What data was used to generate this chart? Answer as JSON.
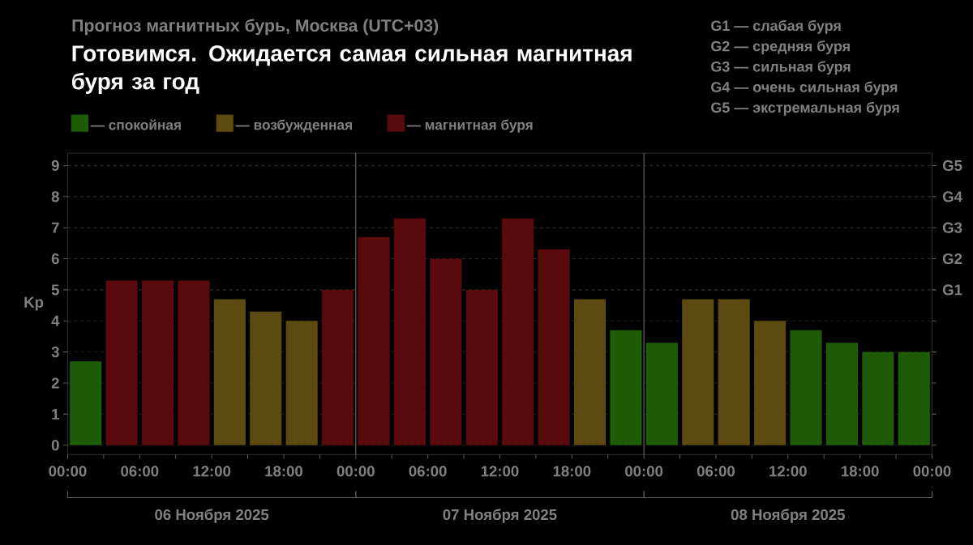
{
  "chart_data": {
    "type": "bar",
    "title": "Прогноз магнитных бурь, Москва (UTC+03)",
    "ylabel": "Kp",
    "annotations": [
      "Готовимся. Ожидается самая сильная магнитная буря за год",
      "06 Ноября 2025",
      "07 Ноября 2025",
      "08 Ноября 2025",
      "G1 — слабая буря",
      "G2 — средняя буря",
      "G3 — сильная буря",
      "G4 — очень сильная буря",
      "G5 — экстремальная буря"
    ],
    "x": [
      "2025-11-06T01:30",
      "2025-11-06T04:30",
      "2025-11-06T07:30",
      "2025-11-06T10:30",
      "2025-11-06T13:30",
      "2025-11-06T16:30",
      "2025-11-06T19:30",
      "2025-11-06T22:30",
      "2025-11-07T01:30",
      "2025-11-07T04:30",
      "2025-11-07T07:30",
      "2025-11-07T10:30",
      "2025-11-07T13:30",
      "2025-11-07T16:30",
      "2025-11-07T19:30",
      "2025-11-07T22:30",
      "2025-11-08T01:30",
      "2025-11-08T04:30",
      "2025-11-08T07:30",
      "2025-11-08T10:30",
      "2025-11-08T13:30",
      "2025-11-08T16:30",
      "2025-11-08T19:30",
      "2025-11-08T22:30"
    ],
    "series": [
      {
        "name": "— спокойная",
        "color": "#1e5c08",
        "values": [
          2.7,
          null,
          null,
          null,
          null,
          null,
          null,
          null,
          null,
          null,
          null,
          null,
          null,
          null,
          null,
          3.7,
          3.3,
          null,
          null,
          null,
          3.7,
          3.3,
          3.0,
          3.0
        ]
      },
      {
        "name": "— возбужденная",
        "color": "#5c4a10",
        "values": [
          null,
          null,
          null,
          null,
          4.7,
          4.3,
          4.0,
          null,
          null,
          null,
          null,
          null,
          null,
          null,
          4.7,
          null,
          null,
          4.7,
          4.7,
          4.0,
          null,
          null,
          null,
          null
        ]
      },
      {
        "name": "— магнитная буря",
        "color": "#5a0a0c",
        "values": [
          null,
          5.3,
          5.3,
          5.3,
          null,
          null,
          null,
          5.0,
          6.7,
          7.3,
          6.0,
          5.0,
          7.3,
          6.3,
          null,
          null,
          null,
          null,
          null,
          null,
          null,
          null,
          null,
          null
        ]
      }
    ],
    "xlim": [
      "2025-11-06T00:00",
      "2025-11-09T00:00"
    ],
    "xticks": [
      {
        "value": "2025-11-06T00:00",
        "label": "00:00"
      },
      {
        "value": "2025-11-06T03:00",
        "label": null
      },
      {
        "value": "2025-11-06T06:00",
        "label": "06:00"
      },
      {
        "value": "2025-11-06T09:00",
        "label": null
      },
      {
        "value": "2025-11-06T12:00",
        "label": "12:00"
      },
      {
        "value": "2025-11-06T15:00",
        "label": null
      },
      {
        "value": "2025-11-06T18:00",
        "label": "18:00"
      },
      {
        "value": "2025-11-06T21:00",
        "label": null
      },
      {
        "value": "2025-11-07T00:00",
        "label": "00:00"
      },
      {
        "value": "2025-11-07T03:00",
        "label": null
      },
      {
        "value": "2025-11-07T06:00",
        "label": "06:00"
      },
      {
        "value": "2025-11-07T09:00",
        "label": null
      },
      {
        "value": "2025-11-07T12:00",
        "label": "12:00"
      },
      {
        "value": "2025-11-07T15:00",
        "label": null
      },
      {
        "value": "2025-11-07T18:00",
        "label": "18:00"
      },
      {
        "value": "2025-11-07T21:00",
        "label": null
      },
      {
        "value": "2025-11-08T00:00",
        "label": "00:00"
      },
      {
        "value": "2025-11-08T03:00",
        "label": null
      },
      {
        "value": "2025-11-08T06:00",
        "label": "06:00"
      },
      {
        "value": "2025-11-08T09:00",
        "label": null
      },
      {
        "value": "2025-11-08T12:00",
        "label": "12:00"
      },
      {
        "value": "2025-11-08T15:00",
        "label": null
      },
      {
        "value": "2025-11-08T18:00",
        "label": "18:00"
      },
      {
        "value": "2025-11-08T21:00",
        "label": null
      },
      {
        "value": "2025-11-09T00:00",
        "label": "00:00"
      }
    ],
    "ylim": [
      -0.3,
      9.4
    ],
    "yticks": [
      0,
      1,
      2,
      3,
      4,
      5,
      6,
      7,
      8,
      9
    ],
    "ref_lines": [
      {
        "axis": "x",
        "value": "2025-11-07T00:00",
        "color": "#6e6e6e"
      },
      {
        "axis": "x",
        "value": "2025-11-08T00:00",
        "color": "#6e6e6e"
      },
      {
        "axis": "y",
        "value": 5,
        "label": "G1"
      },
      {
        "axis": "y",
        "value": 6,
        "label": "G2"
      },
      {
        "axis": "y",
        "value": 7,
        "label": "G3"
      },
      {
        "axis": "y",
        "value": 8,
        "label": "G4"
      },
      {
        "axis": "y",
        "value": 9,
        "label": "G5"
      }
    ],
    "grid": "y",
    "legend": "top"
  }
}
